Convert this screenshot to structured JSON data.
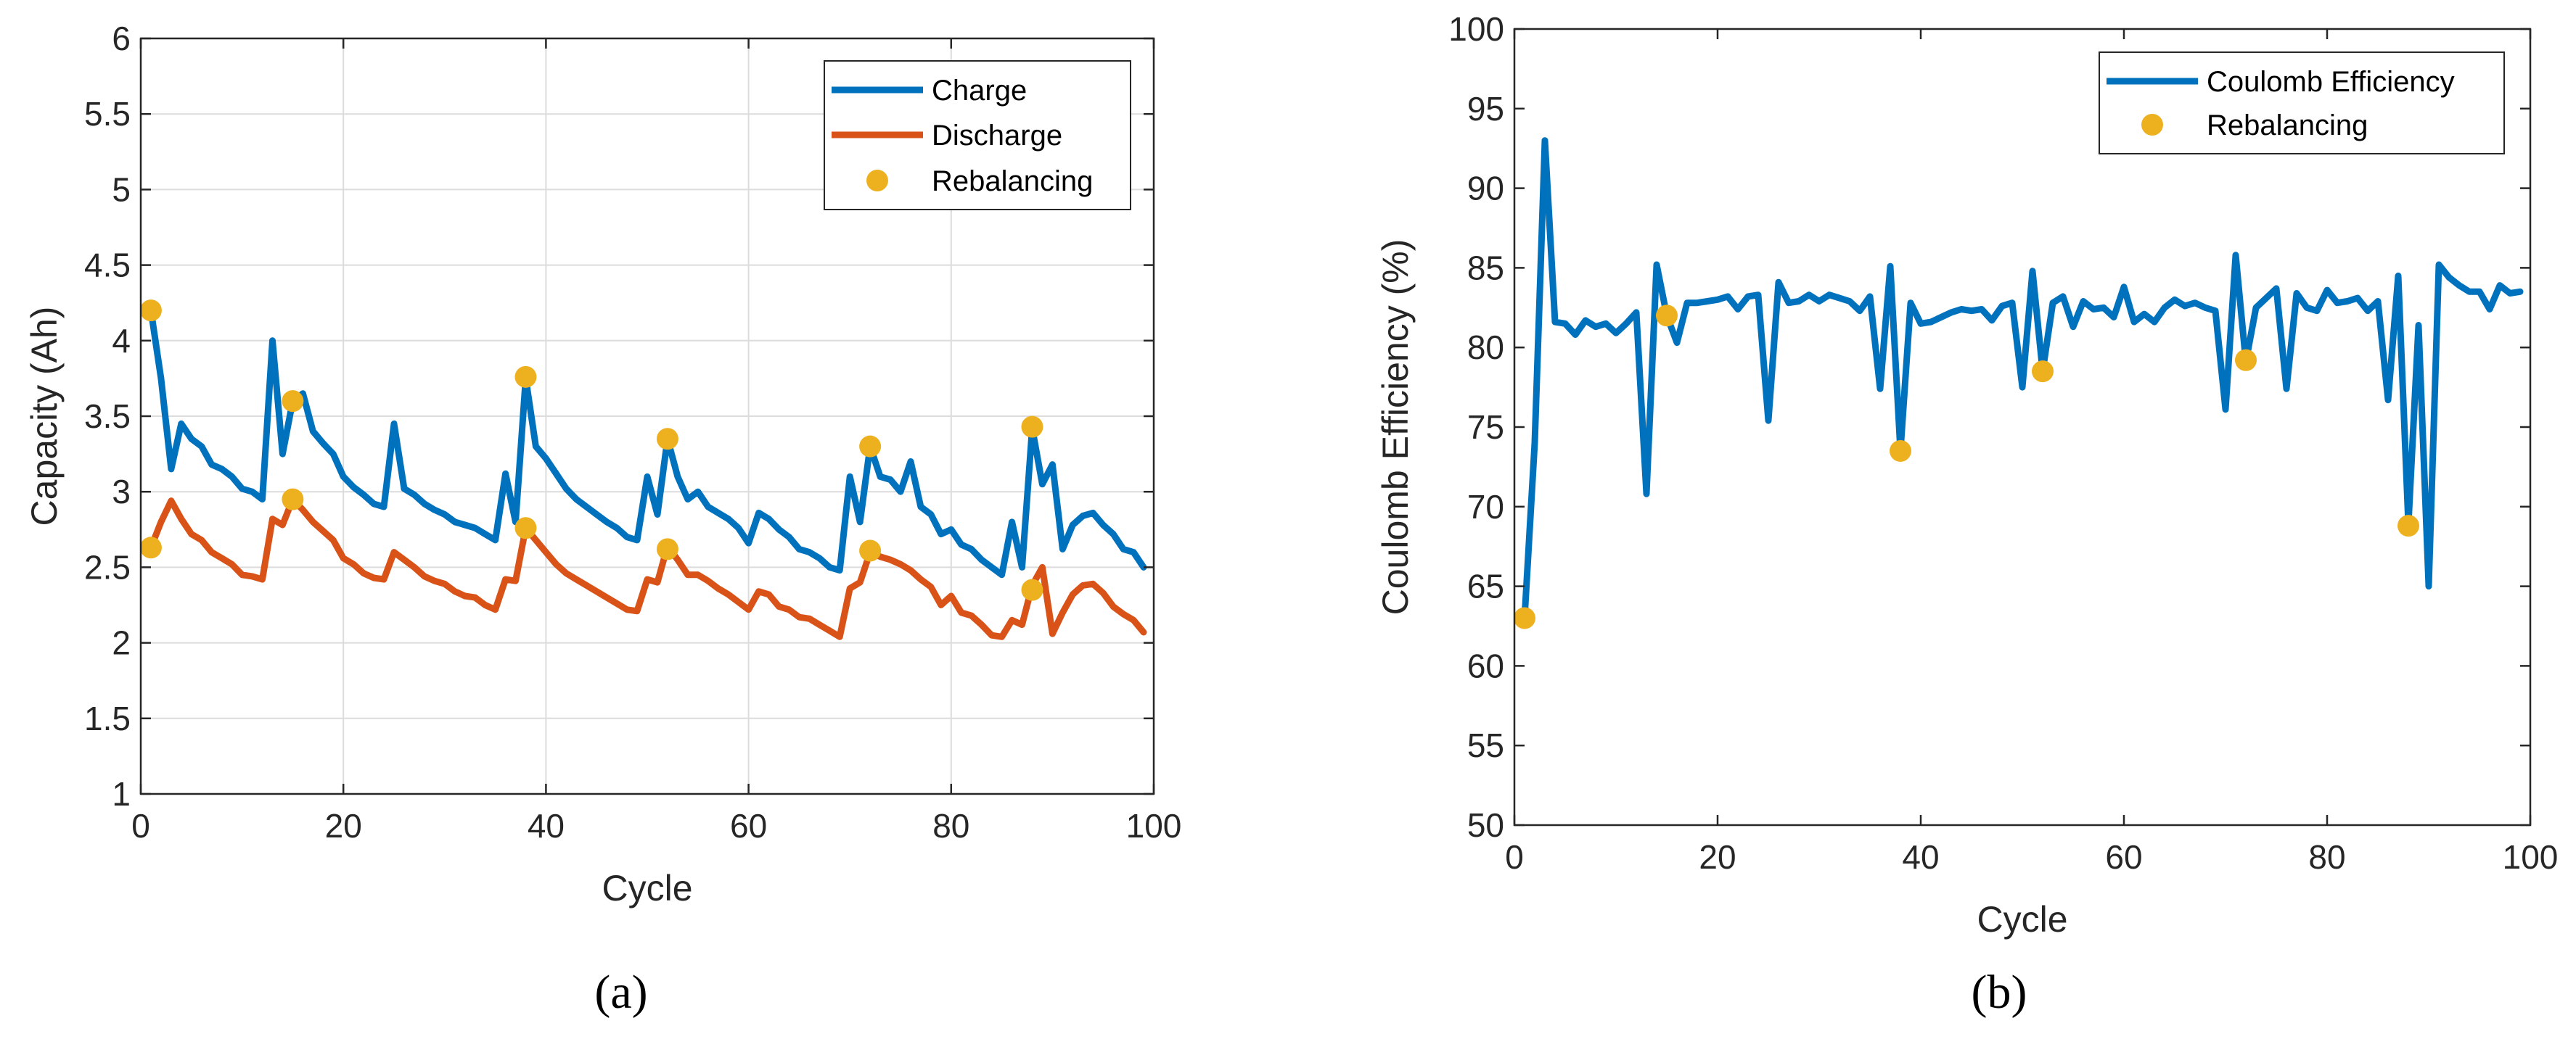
{
  "colors": {
    "charge": "#0072BD",
    "discharge": "#D95319",
    "rebalancing": "#EDB120",
    "efficiency": "#0072BD",
    "grid": "#dcdcdc",
    "axis": "#262626"
  },
  "chart_data": [
    {
      "type": "line",
      "panel_label": "a",
      "panel_text": "(a)",
      "xlabel": "Cycle",
      "ylabel": "Capacity (Ah)",
      "xlim": [
        0,
        100
      ],
      "ylim": [
        1,
        6
      ],
      "xticks": [
        0,
        20,
        40,
        60,
        80,
        100
      ],
      "yticks": [
        1,
        1.5,
        2,
        2.5,
        3,
        3.5,
        4,
        4.5,
        5,
        5.5,
        6
      ],
      "ytick_labels": [
        "1",
        "1.5",
        "2",
        "2.5",
        "3",
        "3.5",
        "4",
        "4.5",
        "5",
        "5.5",
        "6"
      ],
      "grid": true,
      "legend_position": "top-right",
      "series": [
        {
          "name": "Charge",
          "kind": "line",
          "color": "#0072BD",
          "x": [
            1,
            2,
            3,
            4,
            5,
            6,
            7,
            8,
            9,
            10,
            11,
            12,
            13,
            14,
            15,
            16,
            17,
            18,
            19,
            20,
            21,
            22,
            23,
            24,
            25,
            26,
            27,
            28,
            29,
            30,
            31,
            32,
            33,
            34,
            35,
            36,
            37,
            38,
            39,
            40,
            41,
            42,
            43,
            44,
            45,
            46,
            47,
            48,
            49,
            50,
            51,
            52,
            53,
            54,
            55,
            56,
            57,
            58,
            59,
            60,
            61,
            62,
            63,
            64,
            65,
            66,
            67,
            68,
            69,
            70,
            71,
            72,
            73,
            74,
            75,
            76,
            77,
            78,
            79,
            80,
            81,
            82,
            83,
            84,
            85,
            86,
            87,
            88,
            89,
            90,
            91,
            92,
            93,
            94,
            95,
            96,
            97,
            98,
            99
          ],
          "y": [
            4.2,
            3.75,
            3.15,
            3.45,
            3.35,
            3.3,
            3.18,
            3.15,
            3.1,
            3.02,
            3.0,
            2.95,
            4.0,
            3.25,
            3.6,
            3.65,
            3.4,
            3.32,
            3.25,
            3.1,
            3.03,
            2.98,
            2.92,
            2.9,
            3.45,
            3.02,
            2.98,
            2.92,
            2.88,
            2.85,
            2.8,
            2.78,
            2.76,
            2.72,
            2.68,
            3.12,
            2.8,
            3.75,
            3.3,
            3.22,
            3.12,
            3.02,
            2.95,
            2.9,
            2.85,
            2.8,
            2.76,
            2.7,
            2.68,
            3.1,
            2.85,
            3.35,
            3.1,
            2.95,
            3.0,
            2.9,
            2.86,
            2.82,
            2.76,
            2.66,
            2.86,
            2.82,
            2.75,
            2.7,
            2.62,
            2.6,
            2.56,
            2.5,
            2.48,
            3.1,
            2.8,
            3.3,
            3.1,
            3.08,
            3.0,
            3.2,
            2.9,
            2.85,
            2.72,
            2.75,
            2.65,
            2.62,
            2.55,
            2.5,
            2.45,
            2.8,
            2.5,
            3.42,
            3.05,
            3.18,
            2.62,
            2.78,
            2.84,
            2.86,
            2.78,
            2.72,
            2.62,
            2.6,
            2.5
          ]
        },
        {
          "name": "Discharge",
          "kind": "line",
          "color": "#D95319",
          "x": [
            1,
            2,
            3,
            4,
            5,
            6,
            7,
            8,
            9,
            10,
            11,
            12,
            13,
            14,
            15,
            16,
            17,
            18,
            19,
            20,
            21,
            22,
            23,
            24,
            25,
            26,
            27,
            28,
            29,
            30,
            31,
            32,
            33,
            34,
            35,
            36,
            37,
            38,
            39,
            40,
            41,
            42,
            43,
            44,
            45,
            46,
            47,
            48,
            49,
            50,
            51,
            52,
            53,
            54,
            55,
            56,
            57,
            58,
            59,
            60,
            61,
            62,
            63,
            64,
            65,
            66,
            67,
            68,
            69,
            70,
            71,
            72,
            73,
            74,
            75,
            76,
            77,
            78,
            79,
            80,
            81,
            82,
            83,
            84,
            85,
            86,
            87,
            88,
            89,
            90,
            91,
            92,
            93,
            94,
            95,
            96,
            97,
            98,
            99
          ],
          "y": [
            2.63,
            2.8,
            2.94,
            2.82,
            2.72,
            2.68,
            2.6,
            2.56,
            2.52,
            2.45,
            2.44,
            2.42,
            2.82,
            2.78,
            2.95,
            2.88,
            2.8,
            2.74,
            2.68,
            2.56,
            2.52,
            2.46,
            2.43,
            2.42,
            2.6,
            2.55,
            2.5,
            2.44,
            2.41,
            2.39,
            2.34,
            2.31,
            2.3,
            2.25,
            2.22,
            2.42,
            2.41,
            2.76,
            2.68,
            2.6,
            2.52,
            2.46,
            2.42,
            2.38,
            2.34,
            2.3,
            2.26,
            2.22,
            2.21,
            2.42,
            2.4,
            2.64,
            2.55,
            2.45,
            2.45,
            2.41,
            2.36,
            2.32,
            2.27,
            2.22,
            2.34,
            2.32,
            2.24,
            2.22,
            2.17,
            2.16,
            2.12,
            2.08,
            2.04,
            2.36,
            2.4,
            2.6,
            2.57,
            2.55,
            2.52,
            2.48,
            2.42,
            2.37,
            2.25,
            2.31,
            2.2,
            2.18,
            2.12,
            2.05,
            2.04,
            2.15,
            2.12,
            2.38,
            2.5,
            2.06,
            2.2,
            2.32,
            2.38,
            2.39,
            2.33,
            2.24,
            2.19,
            2.15,
            2.07
          ]
        },
        {
          "name": "Rebalancing",
          "kind": "marker",
          "color": "#EDB120",
          "x": [
            1,
            1,
            15,
            15,
            38,
            38,
            52,
            52,
            72,
            72,
            88,
            88
          ],
          "y": [
            4.2,
            2.63,
            3.6,
            2.95,
            3.76,
            2.76,
            3.35,
            2.62,
            3.3,
            2.61,
            3.43,
            2.35
          ]
        }
      ]
    },
    {
      "type": "line",
      "panel_label": "b",
      "panel_text": "(b)",
      "xlabel": "Cycle",
      "ylabel": "Coulomb Efficiency (%)",
      "xlim": [
        0,
        100
      ],
      "ylim": [
        50,
        100
      ],
      "xticks": [
        0,
        20,
        40,
        60,
        80,
        100
      ],
      "yticks": [
        50,
        55,
        60,
        65,
        70,
        75,
        80,
        85,
        90,
        95,
        100
      ],
      "ytick_labels": [
        "50",
        "55",
        "60",
        "65",
        "70",
        "75",
        "80",
        "85",
        "90",
        "95",
        "100"
      ],
      "grid": false,
      "legend_position": "top-right",
      "series": [
        {
          "name": "Coulomb Efficiency",
          "kind": "line",
          "color": "#0072BD",
          "x": [
            1,
            2,
            3,
            4,
            5,
            6,
            7,
            8,
            9,
            10,
            11,
            12,
            13,
            14,
            15,
            16,
            17,
            18,
            19,
            20,
            21,
            22,
            23,
            24,
            25,
            26,
            27,
            28,
            29,
            30,
            31,
            32,
            33,
            34,
            35,
            36,
            37,
            38,
            39,
            40,
            41,
            42,
            43,
            44,
            45,
            46,
            47,
            48,
            49,
            50,
            51,
            52,
            53,
            54,
            55,
            56,
            57,
            58,
            59,
            60,
            61,
            62,
            63,
            64,
            65,
            66,
            67,
            68,
            69,
            70,
            71,
            72,
            73,
            74,
            75,
            76,
            77,
            78,
            79,
            80,
            81,
            82,
            83,
            84,
            85,
            86,
            87,
            88,
            89,
            90,
            91,
            92,
            93,
            94,
            95,
            96,
            97,
            98,
            99
          ],
          "y": [
            63,
            74,
            93,
            81.6,
            81.5,
            80.8,
            81.7,
            81.3,
            81.5,
            80.9,
            81.5,
            82.2,
            70.8,
            85.2,
            82,
            80.3,
            82.8,
            82.8,
            82.9,
            83,
            83.2,
            82.4,
            83.2,
            83.3,
            75.4,
            84.1,
            82.8,
            82.9,
            83.3,
            82.9,
            83.3,
            83.1,
            82.9,
            82.3,
            83.2,
            77.4,
            85.1,
            73.5,
            82.8,
            81.5,
            81.6,
            81.9,
            82.2,
            82.4,
            82.3,
            82.4,
            81.7,
            82.6,
            82.8,
            77.5,
            84.8,
            78.5,
            82.8,
            83.2,
            81.3,
            82.9,
            82.4,
            82.5,
            81.9,
            83.8,
            81.6,
            82.1,
            81.6,
            82.5,
            83,
            82.6,
            82.8,
            82.5,
            82.3,
            76.1,
            85.8,
            79.1,
            82.5,
            83.1,
            83.7,
            77.4,
            83.4,
            82.5,
            82.3,
            83.6,
            82.8,
            82.9,
            83.1,
            82.3,
            82.9,
            76.7,
            84.5,
            68.9,
            81.4,
            65,
            85.2,
            84.4,
            83.9,
            83.5,
            83.5,
            82.4,
            83.9,
            83.4,
            83.5
          ]
        },
        {
          "name": "Rebalancing",
          "kind": "marker",
          "color": "#EDB120",
          "x": [
            1,
            15,
            38,
            52,
            72,
            88
          ],
          "y": [
            63,
            82,
            73.5,
            78.5,
            79.2,
            68.8
          ]
        }
      ]
    }
  ]
}
